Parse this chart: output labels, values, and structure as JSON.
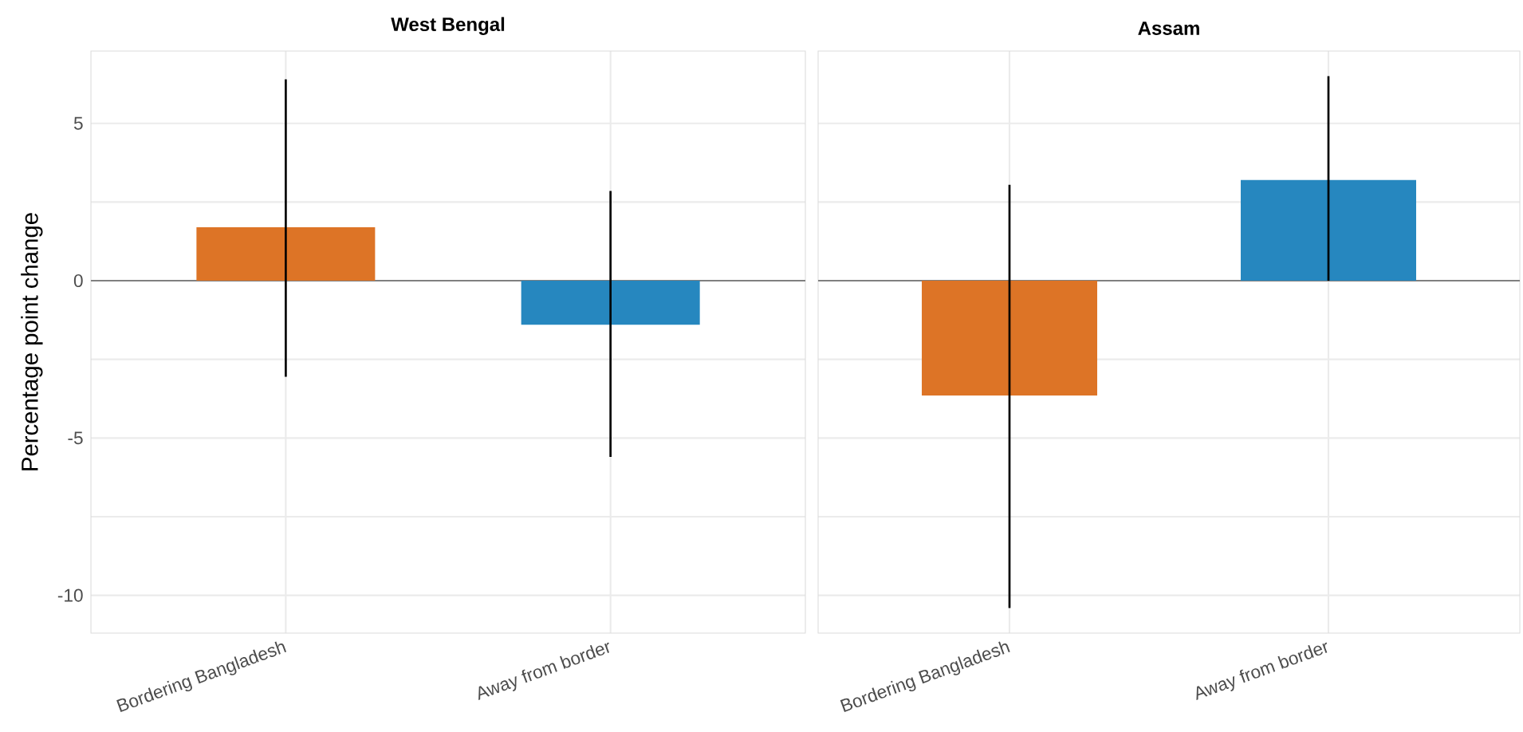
{
  "chart_data": [
    {
      "type": "bar",
      "title": "West Bengal",
      "ylabel": "Percentage point change",
      "categories": [
        "Bordering Bangladesh",
        "Away from border"
      ],
      "values": [
        1.7,
        -1.4
      ],
      "colors": [
        "#dd7426",
        "#2687bf"
      ],
      "errors": [
        [
          -3.05,
          6.4
        ],
        [
          -5.6,
          2.85
        ]
      ],
      "ylim": [
        -11.2,
        7.3
      ],
      "yticks": [
        -10,
        {
          "value": -7.5,
          "label": null
        },
        -5,
        {
          "value": -2.5,
          "label": null
        },
        0,
        {
          "value": 2.5,
          "label": null
        },
        5
      ],
      "grid": true,
      "ref_lines": [
        {
          "axis": "y",
          "value": 0,
          "color": "#808080"
        }
      ]
    },
    {
      "type": "bar",
      "title": "Assam",
      "categories": [
        "Bordering Bangladesh",
        "Away from border"
      ],
      "values": [
        -3.65,
        3.2
      ],
      "colors": [
        "#dd7426",
        "#2687bf"
      ],
      "errors": [
        [
          -10.4,
          3.05
        ],
        [
          0,
          6.5
        ]
      ],
      "ylim": [
        -11.2,
        7.3
      ],
      "yticks": [
        -10,
        {
          "value": -7.5,
          "label": null
        },
        -5,
        {
          "value": -2.5,
          "label": null
        },
        0,
        {
          "value": 2.5,
          "label": null
        },
        5
      ],
      "grid": true,
      "tick_labels": "x",
      "ref_lines": [
        {
          "axis": "y",
          "value": 0,
          "color": "#808080"
        }
      ]
    }
  ]
}
